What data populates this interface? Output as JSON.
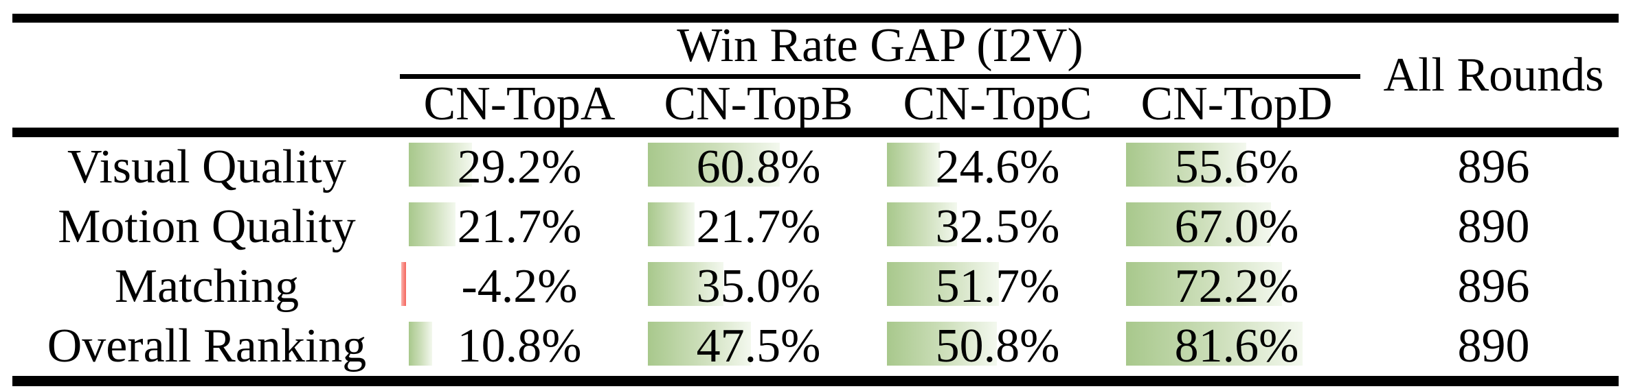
{
  "table": {
    "group_header": "Win Rate GAP (I2V)",
    "all_rounds_header": "All Rounds",
    "columns": [
      "CN-TopA",
      "CN-TopB",
      "CN-TopC",
      "CN-TopD"
    ],
    "rows": [
      {
        "label": "Visual Quality",
        "cells": [
          {
            "value": "29.2%",
            "pct": 29.2
          },
          {
            "value": "60.8%",
            "pct": 60.8
          },
          {
            "value": "24.6%",
            "pct": 24.6
          },
          {
            "value": "55.6%",
            "pct": 55.6
          }
        ],
        "all_rounds": "896"
      },
      {
        "label": "Motion Quality",
        "cells": [
          {
            "value": "21.7%",
            "pct": 21.7
          },
          {
            "value": "21.7%",
            "pct": 21.7
          },
          {
            "value": "32.5%",
            "pct": 32.5
          },
          {
            "value": "67.0%",
            "pct": 67.0
          }
        ],
        "all_rounds": "890"
      },
      {
        "label": "Matching",
        "cells": [
          {
            "value": "-4.2%",
            "pct": -4.2
          },
          {
            "value": "35.0%",
            "pct": 35.0
          },
          {
            "value": "51.7%",
            "pct": 51.7
          },
          {
            "value": "72.2%",
            "pct": 72.2
          }
        ],
        "all_rounds": "896"
      },
      {
        "label": "Overall Ranking",
        "cells": [
          {
            "value": "10.8%",
            "pct": 10.8
          },
          {
            "value": "47.5%",
            "pct": 47.5
          },
          {
            "value": "50.8%",
            "pct": 50.8
          },
          {
            "value": "81.6%",
            "pct": 81.6
          }
        ],
        "all_rounds": "890"
      }
    ],
    "colors": {
      "background": "#ffffff",
      "text": "#000000",
      "rule": "#000000",
      "bar_green": "#a8c88c",
      "bar_green_mid": "#cfe0bd",
      "bar_green_fade": "#f3f8ee",
      "bar_red": "#f4645c",
      "bar_red_light": "#fbb3ad"
    }
  },
  "chart_data": {
    "type": "table",
    "title": "Win Rate GAP (I2V)",
    "columns": [
      "",
      "CN-TopA",
      "CN-TopB",
      "CN-TopC",
      "CN-TopD",
      "All Rounds"
    ],
    "rows": [
      [
        "Visual Quality",
        29.2,
        60.8,
        24.6,
        55.6,
        896
      ],
      [
        "Motion Quality",
        21.7,
        21.7,
        32.5,
        67.0,
        890
      ],
      [
        "Matching",
        -4.2,
        35.0,
        51.7,
        72.2,
        896
      ],
      [
        "Overall Ranking",
        10.8,
        47.5,
        50.8,
        81.6,
        890
      ]
    ],
    "value_format": "percent for CN-Top columns, count for All Rounds",
    "cell_bars": "green gradient data bars proportional to percent; negative values shown as thin red bar",
    "bar_axis_range": [
      0,
      100
    ]
  }
}
